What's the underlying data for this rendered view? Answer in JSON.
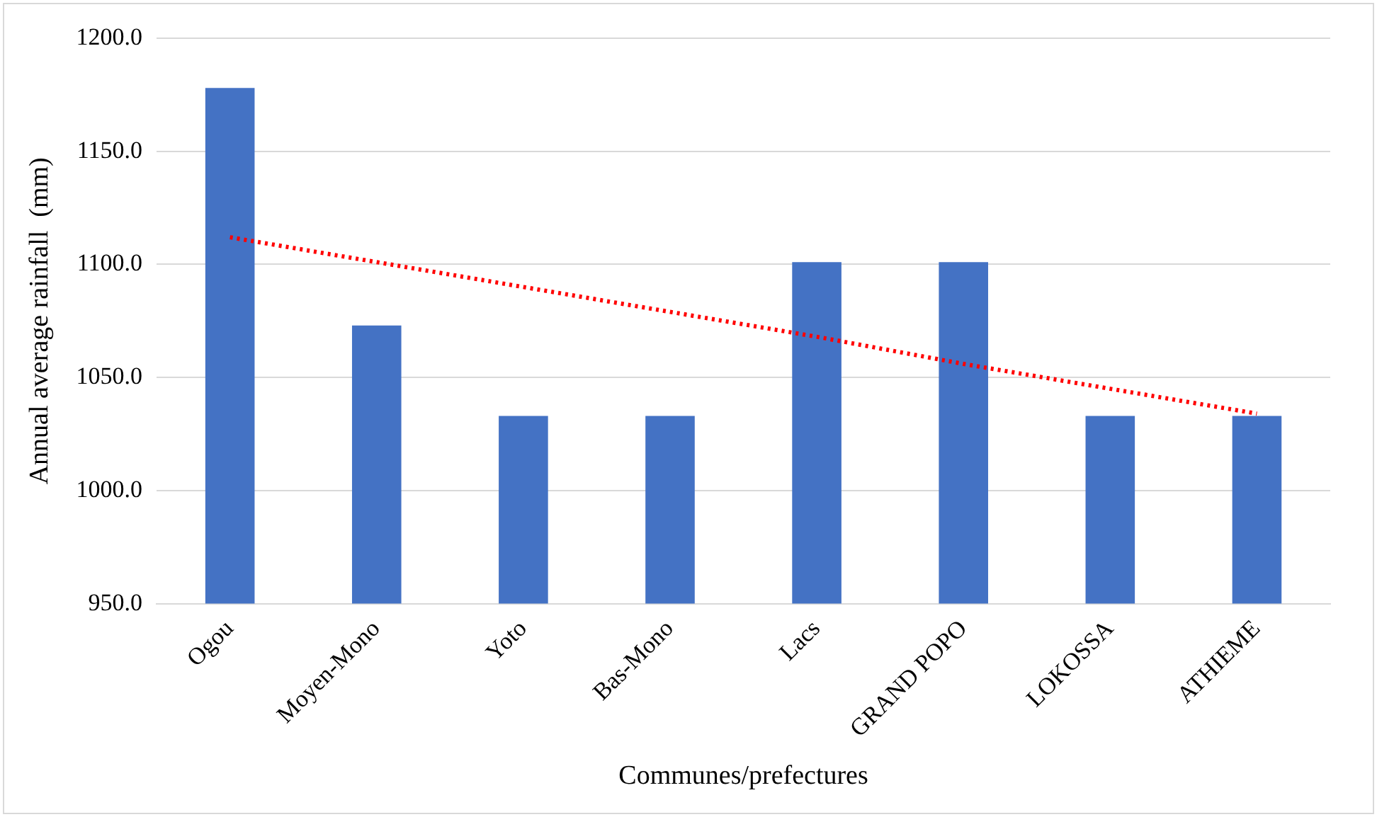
{
  "chart_data": {
    "type": "bar",
    "xlabel": "Communes/prefectures",
    "ylabel": "Annual average rainfall  (mm)",
    "categories": [
      "Ogou",
      "Moyen-Mono",
      "Yoto",
      "Bas-Mono",
      "Lacs",
      "GRAND POPO",
      "LOKOSSA",
      "ATHIEME"
    ],
    "series": [
      {
        "color": "#4472c4",
        "values": [
          1178,
          1073,
          1033,
          1033,
          1101,
          1101,
          1033,
          1033
        ]
      },
      {
        "type": "line",
        "color": "#ff0000",
        "line_style": "dotted",
        "marker": "none",
        "values": [
          1112,
          1101,
          1090,
          1079,
          1068,
          1056,
          1045,
          1034
        ]
      }
    ],
    "ylim": [
      950,
      1200
    ],
    "yticks": [
      {
        "value": 950,
        "label": "950.0"
      },
      {
        "value": 1000,
        "label": "1000.0"
      },
      {
        "value": 1050,
        "label": "1050.0"
      },
      {
        "value": 1100,
        "label": "1100.0"
      },
      {
        "value": 1150,
        "label": "1150.0"
      },
      {
        "value": 1200,
        "label": "1200.0"
      }
    ],
    "grid": "y",
    "legend": false
  }
}
